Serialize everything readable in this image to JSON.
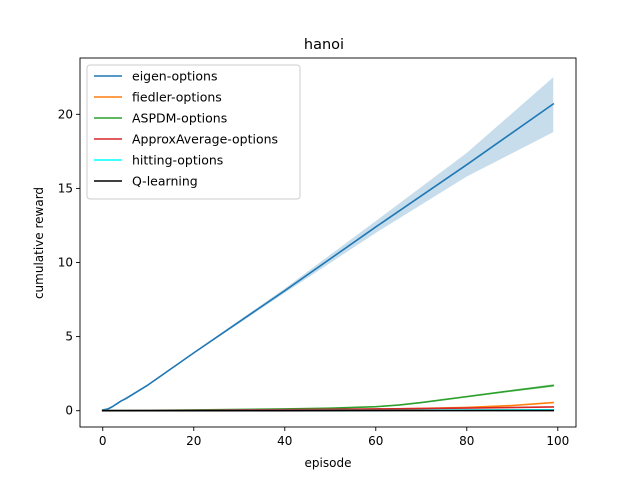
{
  "chart_data": {
    "type": "line",
    "title": "hanoi",
    "xlabel": "episode",
    "ylabel": "cumulative reward",
    "xlim": [
      -5,
      104
    ],
    "ylim": [
      -1.1,
      23.8
    ],
    "xticks": [
      0,
      20,
      40,
      60,
      80,
      100
    ],
    "yticks": [
      0,
      5,
      10,
      15,
      20
    ],
    "grid": false,
    "legend_position": "top-left",
    "series": [
      {
        "name": "eigen-options",
        "color": "#1f77b4",
        "x": [
          0,
          1,
          2,
          3,
          4,
          5,
          10,
          20,
          40,
          60,
          80,
          99
        ],
        "y": [
          0.05,
          0.1,
          0.25,
          0.45,
          0.65,
          0.8,
          1.75,
          3.9,
          8.1,
          12.4,
          16.6,
          20.7
        ],
        "upper": [
          0.1,
          0.18,
          0.3,
          0.5,
          0.7,
          0.9,
          1.8,
          3.95,
          8.25,
          12.8,
          17.4,
          22.5
        ],
        "lower": [
          0.0,
          0.05,
          0.2,
          0.4,
          0.6,
          0.75,
          1.7,
          3.85,
          7.95,
          12.0,
          15.8,
          18.8
        ]
      },
      {
        "name": "fiedler-options",
        "color": "#ff7f0e",
        "x": [
          0,
          20,
          40,
          60,
          70,
          80,
          90,
          99
        ],
        "y": [
          0.0,
          0.02,
          0.05,
          0.1,
          0.15,
          0.22,
          0.35,
          0.55
        ],
        "upper": [
          0.0,
          0.03,
          0.07,
          0.13,
          0.18,
          0.26,
          0.4,
          0.62
        ],
        "lower": [
          0.0,
          0.01,
          0.03,
          0.07,
          0.12,
          0.18,
          0.3,
          0.48
        ]
      },
      {
        "name": "ASPDM-options",
        "color": "#2ca02c",
        "x": [
          0,
          20,
          40,
          50,
          60,
          65,
          70,
          80,
          90,
          99
        ],
        "y": [
          0.0,
          0.05,
          0.12,
          0.17,
          0.27,
          0.38,
          0.55,
          0.95,
          1.35,
          1.7
        ],
        "upper": [
          0.0,
          0.06,
          0.14,
          0.19,
          0.3,
          0.42,
          0.6,
          1.02,
          1.42,
          1.8
        ],
        "lower": [
          0.0,
          0.04,
          0.1,
          0.15,
          0.24,
          0.34,
          0.5,
          0.88,
          1.28,
          1.6
        ]
      },
      {
        "name": "ApproxAverage-options",
        "color": "#d62728",
        "x": [
          0,
          20,
          40,
          60,
          80,
          99
        ],
        "y": [
          0.0,
          0.03,
          0.07,
          0.12,
          0.18,
          0.25
        ]
      },
      {
        "name": "hitting-options",
        "color": "#00ffff",
        "x": [
          0,
          20,
          40,
          60,
          80,
          99
        ],
        "y": [
          0.0,
          0.0,
          0.01,
          0.02,
          0.04,
          0.06
        ]
      },
      {
        "name": "Q-learning",
        "color": "#000000",
        "x": [
          0,
          20,
          40,
          60,
          80,
          99
        ],
        "y": [
          0.0,
          0.0,
          0.0,
          0.01,
          0.01,
          0.01
        ]
      }
    ]
  }
}
